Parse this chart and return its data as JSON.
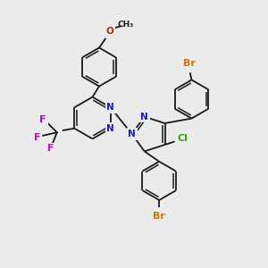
{
  "background_color": "#ebebeb",
  "bond_color": "#1a1a1a",
  "atom_colors": {
    "N": "#1a1acc",
    "F": "#cc00cc",
    "Cl": "#33aa00",
    "Br": "#cc7700",
    "O": "#cc2200"
  },
  "figsize": [
    3.0,
    3.0
  ],
  "dpi": 100
}
